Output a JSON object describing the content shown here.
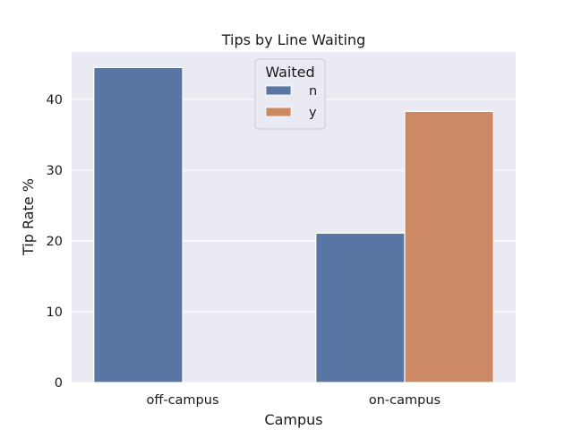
{
  "chart_data": {
    "type": "bar",
    "title": "Tips by Line Waiting",
    "xlabel": "Campus",
    "ylabel": "Tip Rate %",
    "categories": [
      "off-campus",
      "on-campus"
    ],
    "series": [
      {
        "name": "n",
        "values": [
          44.5,
          21.1
        ],
        "color": "#5875a4"
      },
      {
        "name": "y",
        "values": [
          null,
          38.3
        ],
        "color": "#cc8963"
      }
    ],
    "ylim": [
      0,
      46.7
    ],
    "yticks": [
      0,
      10,
      20,
      30,
      40
    ],
    "grid": true,
    "background": "#eaeaf2",
    "legend": {
      "title": "Waited",
      "placement": "top-center"
    }
  }
}
